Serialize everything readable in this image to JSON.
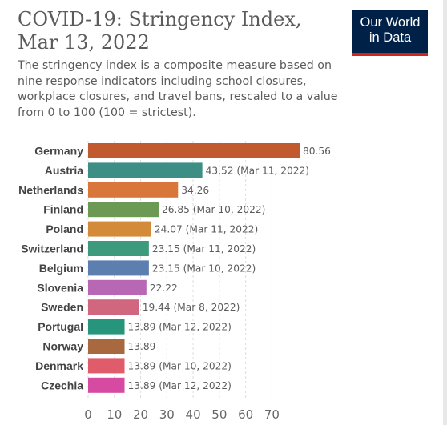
{
  "header": {
    "title": "COVID-19: Stringency Index, Mar 13, 2022",
    "subtitle": "The stringency index is a composite measure based on nine response indicators including school closures, workplace closures, and travel bans, rescaled to a value from 0 to 100 (100 = strictest).",
    "logo_line1": "Our World",
    "logo_line2": "in Data"
  },
  "chart_data": {
    "type": "bar",
    "orientation": "horizontal",
    "title": "COVID-19: Stringency Index, Mar 13, 2022",
    "categories": [
      "Germany",
      "Austria",
      "Netherlands",
      "Finland",
      "Poland",
      "Switzerland",
      "Belgium",
      "Slovenia",
      "Sweden",
      "Portugal",
      "Norway",
      "Denmark",
      "Czechia"
    ],
    "values": [
      80.56,
      43.52,
      34.26,
      26.85,
      24.07,
      23.15,
      23.15,
      22.22,
      19.44,
      13.89,
      13.89,
      13.89,
      13.89
    ],
    "value_labels": [
      "80.56",
      "43.52 (Mar 11, 2022)",
      "34.26",
      "26.85 (Mar 10, 2022)",
      "24.07 (Mar 11, 2022)",
      "23.15 (Mar 11, 2022)",
      "23.15 (Mar 10, 2022)",
      "22.22",
      "19.44 (Mar 8, 2022)",
      "13.89 (Mar 12, 2022)",
      "13.89",
      "13.89 (Mar 10, 2022)",
      "13.89 (Mar 12, 2022)"
    ],
    "colors": [
      "#c15a2e",
      "#3d8e84",
      "#d9773b",
      "#6c9a55",
      "#d38b3a",
      "#3e9a7d",
      "#5c7fb0",
      "#b767b3",
      "#d1677e",
      "#26957c",
      "#a8693f",
      "#e05c6a",
      "#d64aa2"
    ],
    "x_ticks": [
      "0",
      "10",
      "20",
      "30",
      "40",
      "50",
      "60",
      "70"
    ],
    "xlim": [
      0,
      80.56
    ],
    "grid": true
  }
}
